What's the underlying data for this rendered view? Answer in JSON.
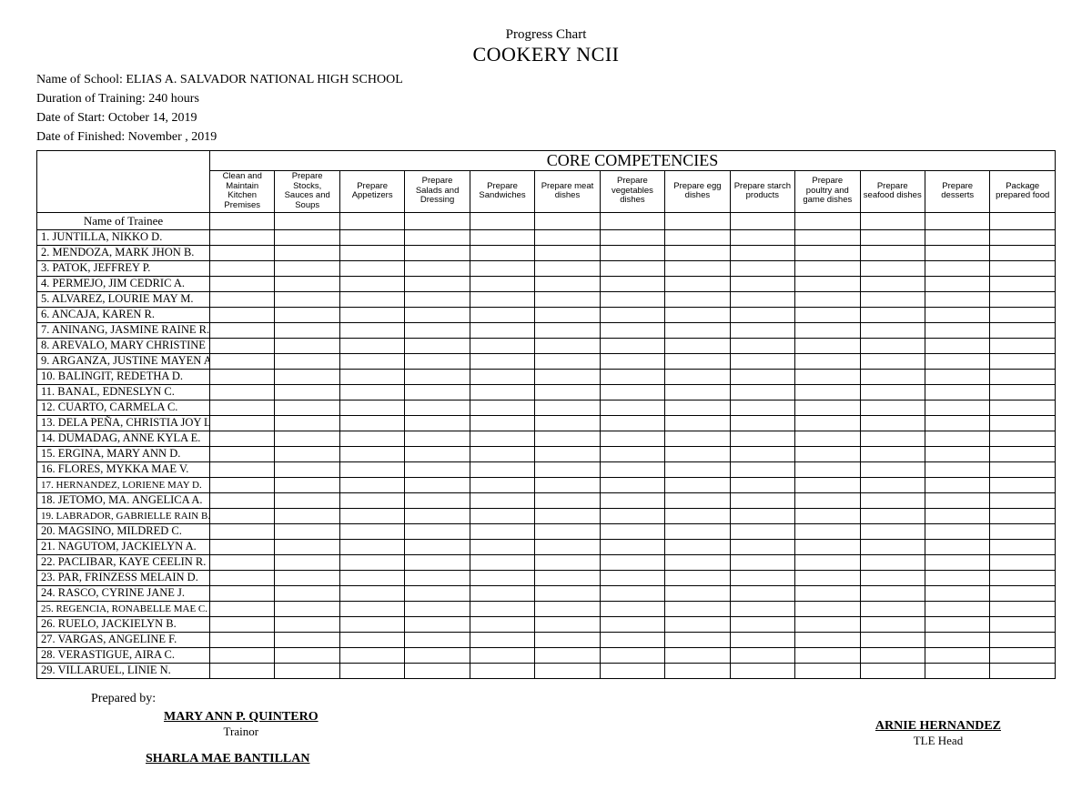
{
  "header": {
    "title_small": "Progress Chart",
    "title_big": "COOKERY NCII",
    "school_label": "Name of School:",
    "school_value": "ELIAS A. SALVADOR NATIONAL HIGH SCHOOL",
    "duration_label": "Duration of Training:",
    "duration_value": "240 hours",
    "start_label": "Date of Start:",
    "start_value": "October 14, 2019",
    "finish_label": "Date of Finished:",
    "finish_value": "November    , 2019"
  },
  "table": {
    "section_title": "CORE COMPETENCIES",
    "trainee_header": "Name of Trainee",
    "competencies": [
      "Clean and Maintain Kitchen Premises",
      "Prepare Stocks, Sauces and Soups",
      "Prepare Appetizers",
      "Prepare Salads and Dressing",
      "Prepare Sandwiches",
      "Prepare meat dishes",
      "Prepare vegetables dishes",
      "Prepare egg dishes",
      "Prepare starch products",
      "Prepare poultry and game dishes",
      "Prepare seafood dishes",
      "Prepare desserts",
      "Package prepared food"
    ],
    "trainees": [
      {
        "n": "1.",
        "name": "JUNTILLA, NIKKO D."
      },
      {
        "n": "2.",
        "name": "MENDOZA, MARK JHON B."
      },
      {
        "n": "3.",
        "name": "PATOK, JEFFREY P."
      },
      {
        "n": "4.",
        "name": "PERMEJO, JIM CEDRIC A."
      },
      {
        "n": "5.",
        "name": "ALVAREZ, LOURIE MAY M."
      },
      {
        "n": "6.",
        "name": "ANCAJA, KAREN R."
      },
      {
        "n": "7.",
        "name": "ANINANG, JASMINE RAINE R."
      },
      {
        "n": "8.",
        "name": "AREVALO, MARY CHRISTINE P."
      },
      {
        "n": "9.",
        "name": "ARGANZA, JUSTINE MAYEN A."
      },
      {
        "n": "10.",
        "name": "BALINGIT, REDETHA D."
      },
      {
        "n": "11.",
        "name": "BANAL, EDNESLYN C."
      },
      {
        "n": "12.",
        "name": "CUARTO, CARMELA C."
      },
      {
        "n": "13.",
        "name": "DELA PEÑA, CHRISTIA JOY L."
      },
      {
        "n": "14.",
        "name": "DUMADAG, ANNE KYLA E."
      },
      {
        "n": "15.",
        "name": "ERGINA, MARY ANN D."
      },
      {
        "n": "16.",
        "name": "FLORES, MYKKA MAE V."
      },
      {
        "n": "17.",
        "name": "HERNANDEZ, LORIENE MAY D.",
        "small": true
      },
      {
        "n": "18.",
        "name": "JETOMO, MA. ANGELICA A."
      },
      {
        "n": "19.",
        "name": "LABRADOR, GABRIELLE RAIN B.",
        "small": true
      },
      {
        "n": "20.",
        "name": "MAGSINO, MILDRED C."
      },
      {
        "n": "21.",
        "name": "NAGUTOM, JACKIELYN A."
      },
      {
        "n": "22.",
        "name": "PACLIBAR, KAYE CEELIN R."
      },
      {
        "n": "23.",
        "name": "PAR, FRINZESS MELAIN D."
      },
      {
        "n": "24.",
        "name": "RASCO, CYRINE JANE J."
      },
      {
        "n": "25.",
        "name": "REGENCIA, RONABELLE MAE C.",
        "small": true
      },
      {
        "n": "26.",
        "name": "RUELO, JACKIELYN B."
      },
      {
        "n": "27.",
        "name": "VARGAS, ANGELINE F."
      },
      {
        "n": "28.",
        "name": "VERASTIGUE, AIRA C."
      },
      {
        "n": "29.",
        "name": "VILLARUEL, LINIE N."
      }
    ]
  },
  "footer": {
    "prepared_label": "Prepared by:",
    "sig1_name": "MARY ANN P. QUINTERO",
    "sig1_role": "Trainor",
    "sig2_name": "SHARLA MAE BANTILLAN",
    "sig3_name": "ARNIE HERNANDEZ",
    "sig3_role": "TLE Head"
  }
}
